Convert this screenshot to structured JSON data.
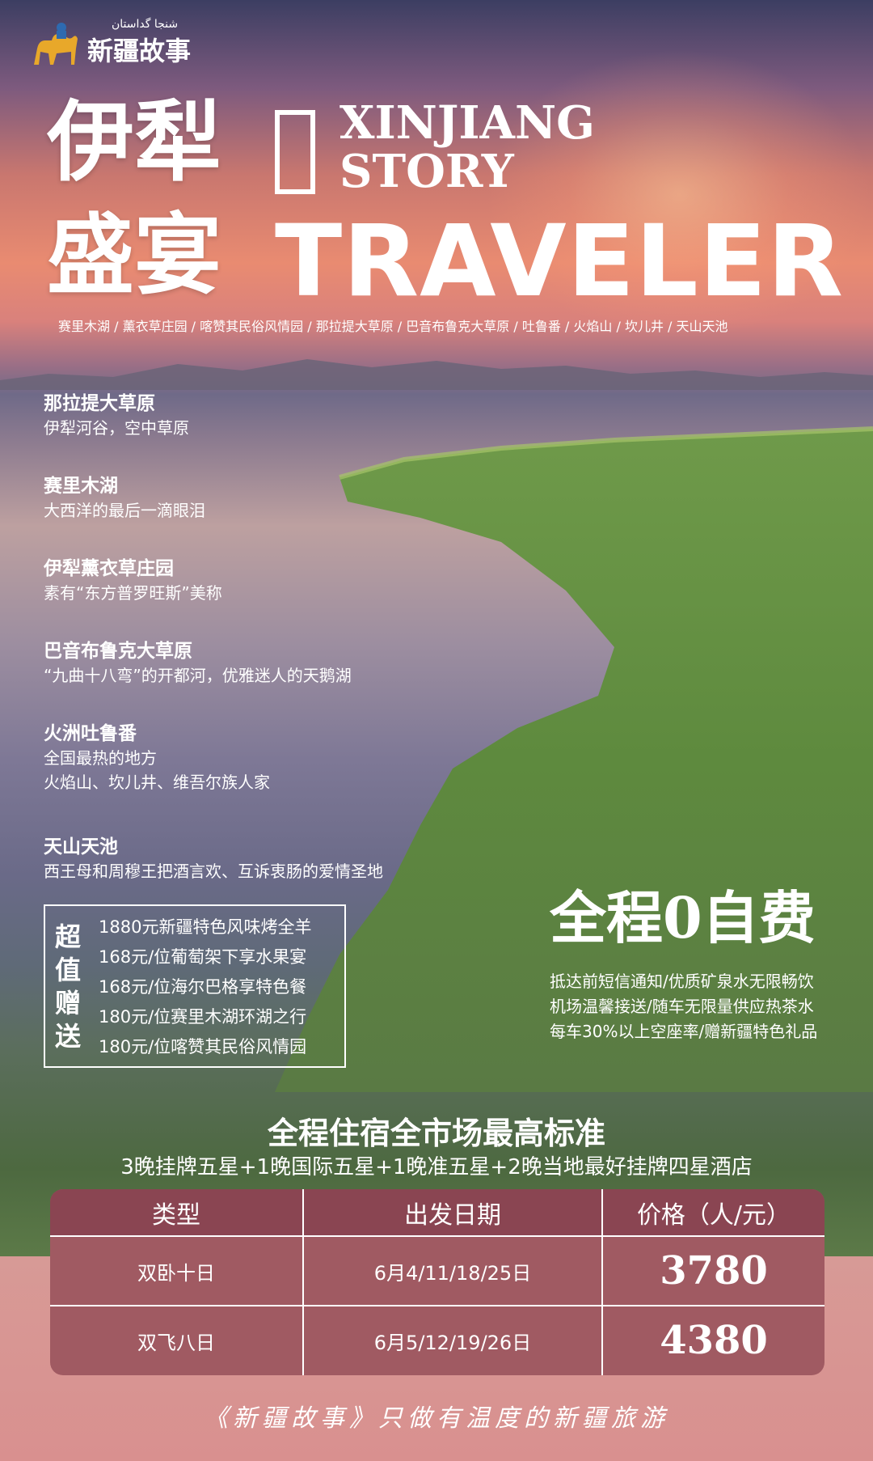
{
  "logo": {
    "uyghur_text": "شنجا گداستان",
    "name": "新疆故事",
    "icon": "camel-icon"
  },
  "hero": {
    "title_line1": "伊犁",
    "title_line2": "盛宴",
    "en_line1": "XINJIANG",
    "en_line2": "STORY",
    "en_line3": "TRAVELER",
    "places": "赛里木湖 / 薰衣草庄园 / 喀赞其民俗风情园 / 那拉提大草原 / 巴音布鲁克大草原 / 吐鲁番 / 火焰山 / 坎儿井 / 天山天池"
  },
  "destinations": [
    {
      "name": "那拉提大草原",
      "desc": [
        "伊犁河谷，空中草原"
      ]
    },
    {
      "name": "赛里木湖",
      "desc": [
        "大西洋的最后一滴眼泪"
      ]
    },
    {
      "name": "伊犁薰衣草庄园",
      "desc": [
        "素有“东方普罗旺斯”美称"
      ]
    },
    {
      "name": "巴音布鲁克大草原",
      "desc": [
        "“九曲十八弯”的开都河，优雅迷人的天鹅湖"
      ]
    },
    {
      "name": "火洲吐鲁番",
      "desc": [
        "全国最热的地方",
        "火焰山、坎儿井、维吾尔族人家"
      ]
    },
    {
      "name": "天山天池",
      "desc": [
        "西王母和周穆王把酒言欢、互诉衷肠的爱情圣地"
      ]
    }
  ],
  "gift": {
    "label": "超值赠送",
    "items": [
      "1880元新疆特色风味烤全羊",
      "168元/位葡萄架下享水果宴",
      "168元/位海尔巴格享特色餐",
      "180元/位赛里木湖环湖之行",
      "180元/位喀赞其民俗风情园"
    ]
  },
  "free": {
    "title": "全程0自费",
    "lines": [
      "抵达前短信通知/优质矿泉水无限畅饮",
      "机场温馨接送/随车无限量供应热茶水",
      "每车30%以上空座率/赠新疆特色礼品"
    ]
  },
  "hotel": {
    "title": "全程住宿全市场最高标准",
    "subtitle": "3晚挂牌五星+1晚国际五星+1晚准五星+2晚当地最好挂牌四星酒店"
  },
  "price_table": {
    "headers": [
      "类型",
      "出发日期",
      "价格（人/元）"
    ],
    "rows": [
      {
        "type": "双卧十日",
        "dates": "6月4/11/18/25日",
        "price": "3780"
      },
      {
        "type": "双飞八日",
        "dates": "6月5/12/19/26日",
        "price": "4380"
      }
    ]
  },
  "slogan": "《新疆故事》只做有温度的新疆旅游",
  "colors": {
    "table_header": "#8a4552",
    "table_body": "#a05a62",
    "bottom_panel": "#d9908f"
  }
}
